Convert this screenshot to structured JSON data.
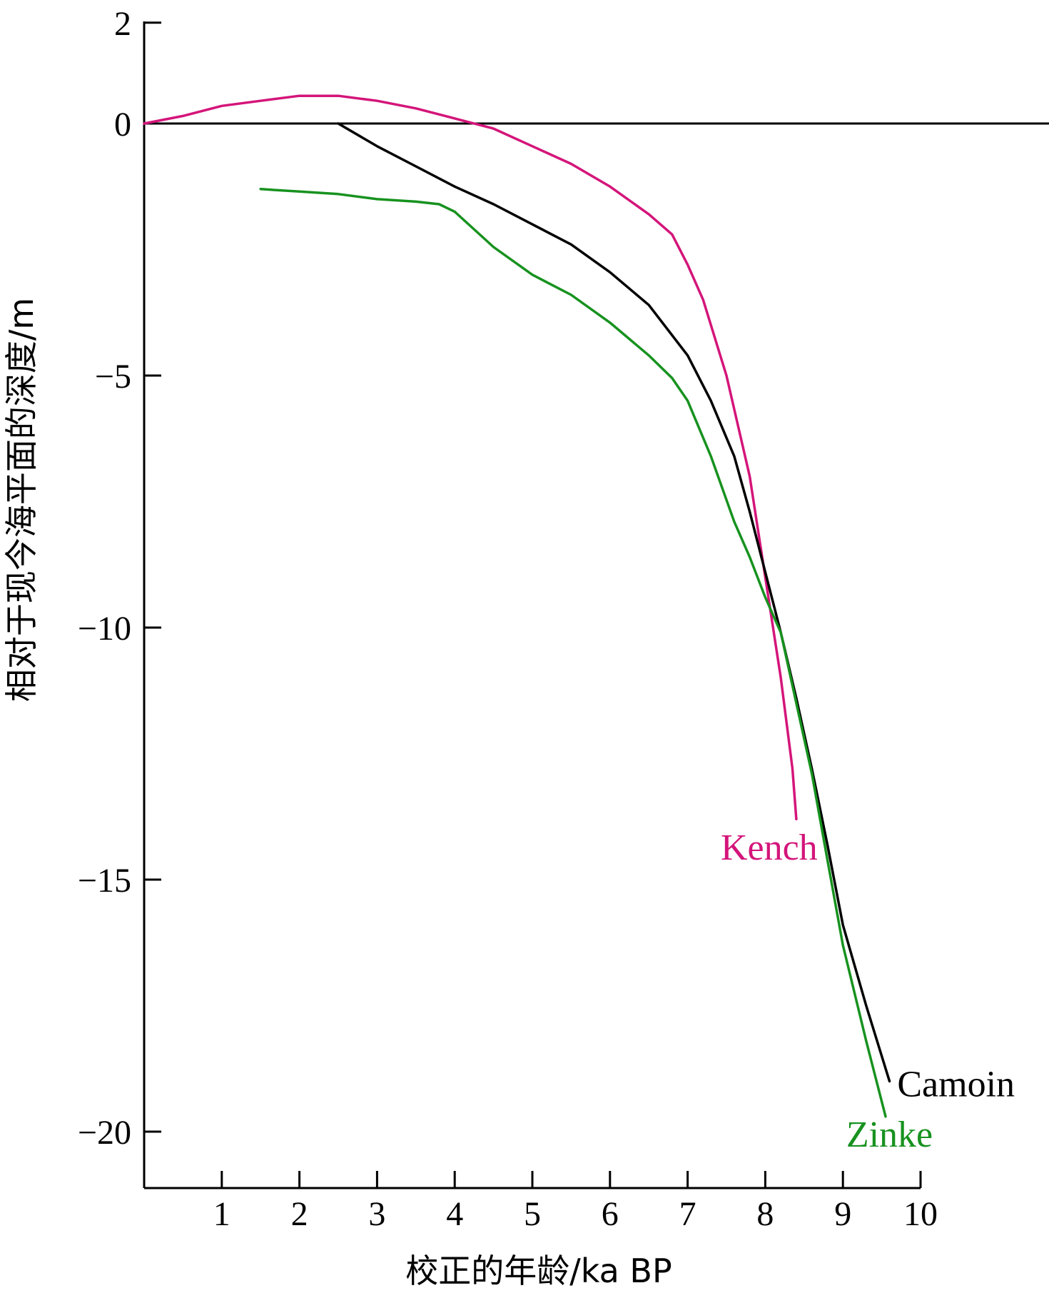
{
  "chart_data": {
    "type": "line",
    "title": "",
    "xlabel": "校正的年龄/ka BP",
    "ylabel": "相对于现今海平面的深度/m",
    "xlim": [
      0,
      10
    ],
    "ylim": [
      -21.5,
      2
    ],
    "x_ticks": [
      1,
      2,
      3,
      4,
      5,
      6,
      7,
      8,
      9,
      10
    ],
    "y_ticks": [
      2,
      0,
      -5,
      -10,
      -15,
      -20
    ],
    "y_tick_labels": [
      "2",
      "0",
      "−5",
      "−10",
      "−15",
      "−20"
    ],
    "reference_line": 0,
    "grid": false,
    "legend": "none",
    "series": [
      {
        "name": "Kench",
        "color": "#d4157a",
        "x": [
          0,
          0.5,
          1,
          1.5,
          2,
          2.5,
          3,
          3.5,
          4,
          4.5,
          5,
          5.5,
          6,
          6.5,
          6.8,
          7,
          7.2,
          7.5,
          7.8,
          8,
          8.2,
          8.35,
          8.4
        ],
        "y": [
          0,
          0.15,
          0.35,
          0.45,
          0.55,
          0.55,
          0.45,
          0.3,
          0.1,
          -0.1,
          -0.45,
          -0.8,
          -1.25,
          -1.8,
          -2.2,
          -2.8,
          -3.5,
          -5.0,
          -7.0,
          -9.0,
          -11.0,
          -12.8,
          -13.8
        ]
      },
      {
        "name": "Camoin",
        "color": "#000000",
        "x": [
          2.5,
          3,
          3.5,
          4,
          4.5,
          5,
          5.5,
          6,
          6.5,
          7,
          7.3,
          7.6,
          7.8,
          8,
          8.2,
          8.4,
          8.6,
          8.8,
          9,
          9.3,
          9.6
        ],
        "y": [
          0,
          -0.45,
          -0.85,
          -1.25,
          -1.6,
          -2.0,
          -2.4,
          -2.95,
          -3.6,
          -4.6,
          -5.5,
          -6.6,
          -7.7,
          -8.9,
          -10.1,
          -11.4,
          -12.8,
          -14.3,
          -15.9,
          -17.5,
          -19.0
        ]
      },
      {
        "name": "Zinke",
        "color": "#17921f",
        "x": [
          1.5,
          2,
          2.5,
          3,
          3.5,
          3.8,
          4,
          4.5,
          5,
          5.5,
          6,
          6.5,
          6.8,
          7,
          7.3,
          7.6,
          7.8,
          8,
          8.2,
          8.4,
          8.6,
          8.8,
          9,
          9.3,
          9.55
        ],
        "y": [
          -1.3,
          -1.35,
          -1.4,
          -1.5,
          -1.55,
          -1.6,
          -1.75,
          -2.45,
          -3.0,
          -3.4,
          -3.95,
          -4.6,
          -5.05,
          -5.5,
          -6.6,
          -7.9,
          -8.6,
          -9.4,
          -10.1,
          -11.5,
          -12.9,
          -14.6,
          -16.3,
          -18.2,
          -19.7
        ]
      }
    ],
    "annotations": [
      {
        "text": "Kench",
        "series": "Kench",
        "color": "#d4157a",
        "at": [
          8.05,
          -14.6
        ],
        "align": "middle"
      },
      {
        "text": "Camoin",
        "series": "Camoin",
        "color": "#000000",
        "at": [
          9.7,
          -19.3
        ],
        "align": "start"
      },
      {
        "text": "Zinke",
        "series": "Zinke",
        "color": "#17921f",
        "at": [
          9.6,
          -20.3
        ],
        "align": "middle"
      }
    ]
  }
}
